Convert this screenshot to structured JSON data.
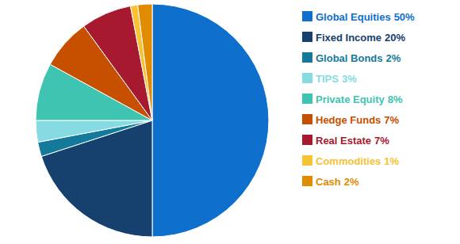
{
  "chart_data": {
    "type": "pie",
    "categories": [
      "Global Equities",
      "Fixed Income",
      "Global Bonds",
      "TIPS",
      "Private Equity",
      "Hedge Funds",
      "Real Estate",
      "Commodities",
      "Cash"
    ],
    "values": [
      50,
      20,
      2,
      3,
      8,
      7,
      7,
      1,
      2
    ],
    "value_labels": [
      "50%",
      "20%",
      "2%",
      "3%",
      "8%",
      "7%",
      "7%",
      "1%",
      "2%"
    ],
    "colors": [
      "#0f6fcc",
      "#16416e",
      "#147a9c",
      "#86dbe3",
      "#3ec4b0",
      "#c64f00",
      "#a6192e",
      "#f7c234",
      "#e08b00"
    ],
    "legend": "right"
  }
}
